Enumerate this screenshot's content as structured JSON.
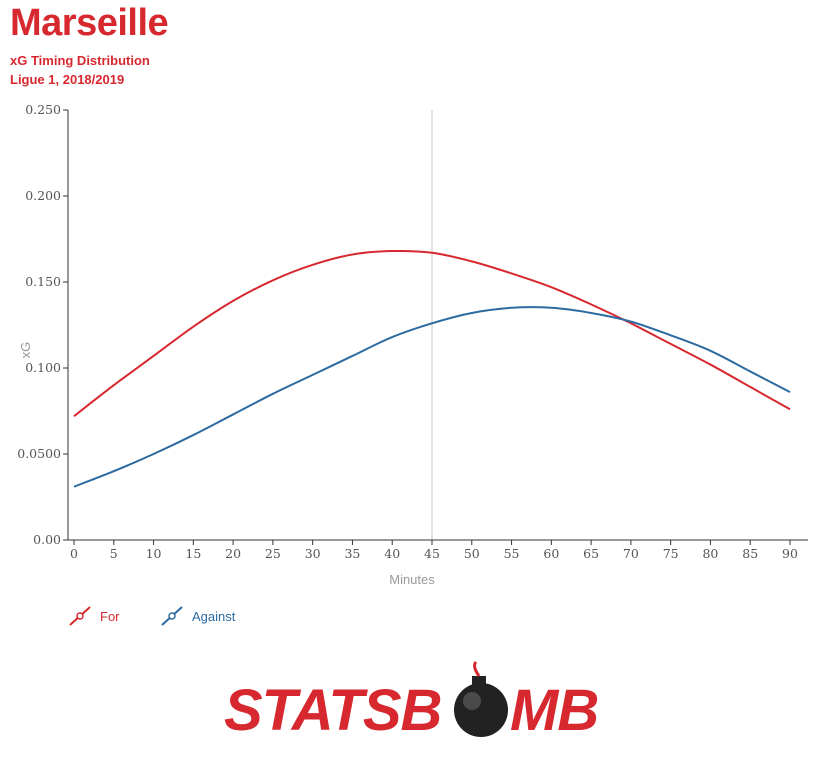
{
  "header": {
    "title": "Marseille",
    "subtitle": "xG Timing Distribution",
    "subtitle2": "Ligue 1, 2018/2019"
  },
  "colors": {
    "for": "#d7282f",
    "against": "#2c6aa0",
    "marker": "#aaaaaa"
  },
  "legend": {
    "for_label": "For",
    "against_label": "Against"
  },
  "logo": {
    "text_left": "STATSB",
    "text_right": "MB",
    "icon": "bomb-icon"
  },
  "chart_data": {
    "type": "line",
    "title": "xG Timing Distribution",
    "xlabel": "Minutes",
    "ylabel": "xG",
    "xlim": [
      0,
      90
    ],
    "ylim": [
      0,
      0.25
    ],
    "x_ticks": [
      0,
      5,
      10,
      15,
      20,
      25,
      30,
      35,
      40,
      45,
      50,
      55,
      60,
      65,
      70,
      75,
      80,
      85,
      90
    ],
    "y_ticks": [
      0,
      0.05,
      0.1,
      0.15,
      0.2,
      0.25
    ],
    "y_tick_labels": [
      "0.00",
      "0.0500",
      "0.100",
      "0.150",
      "0.200",
      "0.250"
    ],
    "vertical_marker": 45,
    "grid": false,
    "legend_position": "bottom-left",
    "x": [
      0,
      5,
      10,
      15,
      20,
      25,
      30,
      35,
      40,
      45,
      50,
      55,
      60,
      65,
      70,
      75,
      80,
      85,
      90
    ],
    "series": [
      {
        "name": "For",
        "values": [
          0.072,
          0.09,
          0.107,
          0.124,
          0.139,
          0.151,
          0.16,
          0.166,
          0.168,
          0.167,
          0.162,
          0.155,
          0.147,
          0.137,
          0.126,
          0.114,
          0.102,
          0.089,
          0.076
        ]
      },
      {
        "name": "Against",
        "values": [
          0.031,
          0.04,
          0.05,
          0.061,
          0.073,
          0.085,
          0.096,
          0.107,
          0.118,
          0.126,
          0.132,
          0.135,
          0.135,
          0.132,
          0.127,
          0.119,
          0.11,
          0.098,
          0.086
        ]
      }
    ]
  }
}
